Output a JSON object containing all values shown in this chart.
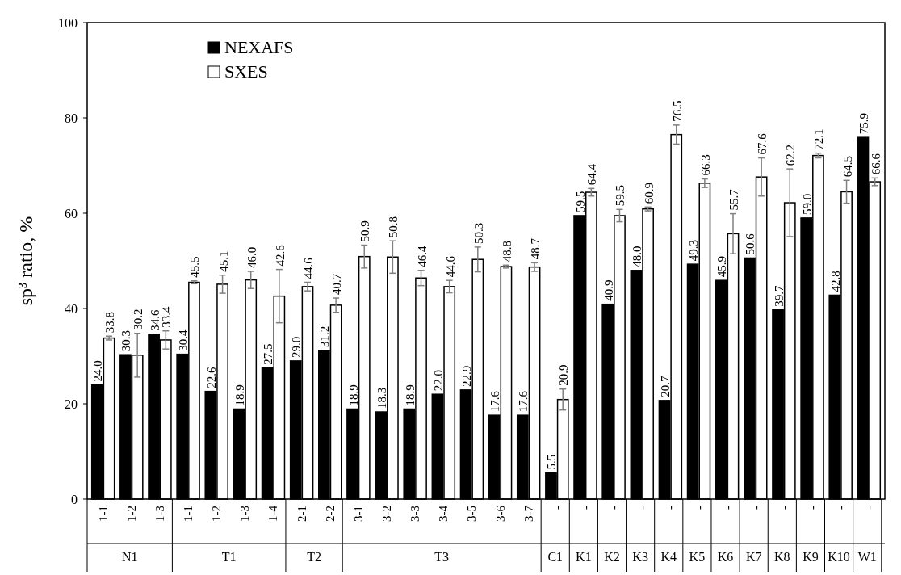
{
  "chart_data": {
    "type": "bar",
    "ylabel": "sp³ ratio, %",
    "ylim": [
      0,
      100
    ],
    "yticks": [
      0,
      20,
      40,
      60,
      80,
      100
    ],
    "grid": false,
    "legend": "top left",
    "categories": [
      "1-1",
      "1-2",
      "1-3",
      "1-1",
      "1-2",
      "1-3",
      "1-4",
      "2-1",
      "2-2",
      "3-1",
      "3-2",
      "3-3",
      "3-4",
      "3-5",
      "3-6",
      "3-7",
      "-",
      "-",
      "-",
      "-",
      "-",
      "-",
      "-",
      "-",
      "-",
      "-",
      "-",
      "-"
    ],
    "annotations": [
      "N1",
      "T1",
      "T2",
      "T3",
      "C1",
      "K1",
      "K2",
      "K3",
      "K4",
      "K5",
      "K6",
      "K7",
      "K8",
      "K9",
      "K10",
      "W1"
    ],
    "series": [
      {
        "name": "NEXAFS",
        "color": "#000000",
        "values": [
          24.0,
          30.3,
          34.6,
          30.4,
          22.6,
          18.9,
          27.5,
          29.0,
          31.2,
          18.9,
          18.3,
          18.9,
          22.0,
          22.9,
          17.6,
          17.6,
          5.5,
          59.5,
          40.9,
          48.0,
          20.7,
          49.3,
          45.9,
          50.6,
          39.7,
          59.0,
          42.8,
          75.9
        ],
        "value_labels": [
          "24.0",
          "30.3",
          "34.6",
          "30.4",
          "22.6",
          "18.9",
          "27.5",
          "29.0",
          "31.2",
          "18.9",
          "18.3",
          "18.9",
          "22.0",
          "22.9",
          "17.6",
          "17.6",
          "5.5",
          "59.5",
          "40.9",
          "48.0",
          "20.7",
          "49.3",
          "45.9",
          "50.6",
          "39.7",
          "59.0",
          "42.8",
          "75.9"
        ]
      },
      {
        "name": "SXES",
        "color": "#ffffff",
        "values": [
          33.8,
          30.2,
          33.4,
          45.5,
          45.1,
          46.0,
          42.6,
          44.6,
          40.7,
          50.9,
          50.8,
          46.4,
          44.6,
          50.3,
          48.8,
          48.7,
          20.9,
          64.4,
          59.5,
          60.9,
          76.5,
          66.3,
          55.7,
          67.6,
          62.2,
          72.1,
          64.5,
          66.6
        ],
        "value_labels": [
          "33.8",
          "30.2",
          "33.4",
          "45.5",
          "45.1",
          "46.0",
          "42.6",
          "44.6",
          "40.7",
          "50.9",
          "50.8",
          "46.4",
          "44.6",
          "50.3",
          "48.8",
          "48.7",
          "20.9",
          "64.4",
          "59.5",
          "60.9",
          "76.5",
          "66.3",
          "55.7",
          "67.6",
          "62.2",
          "72.1",
          "64.5",
          "66.6"
        ],
        "errors": [
          0.4,
          4.6,
          1.9,
          0.3,
          1.9,
          1.8,
          5.6,
          0.9,
          1.5,
          2.4,
          3.4,
          1.6,
          1.3,
          2.6,
          0.3,
          0.9,
          2.2,
          0.8,
          1.3,
          0.4,
          2.0,
          0.9,
          4.2,
          4.0,
          7.1,
          0.5,
          2.4,
          0.8
        ]
      }
    ]
  }
}
